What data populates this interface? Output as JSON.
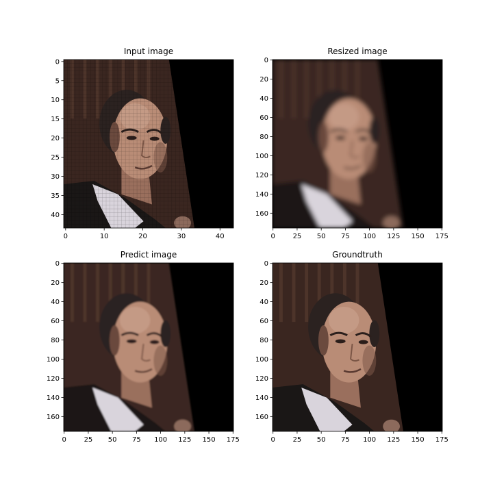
{
  "figure": {
    "panels": [
      {
        "title": "Input image",
        "image_kind": "pixelated",
        "x_ticks": [
          "0",
          "10",
          "20",
          "30",
          "40"
        ],
        "y_ticks": [
          "0",
          "5",
          "10",
          "15",
          "20",
          "25",
          "30",
          "35",
          "40"
        ],
        "x_tick_values": [
          0,
          10,
          20,
          30,
          40
        ],
        "y_tick_values": [
          0,
          5,
          10,
          15,
          20,
          25,
          30,
          35,
          40
        ],
        "range": [
          -0.5,
          43.5
        ]
      },
      {
        "title": "Resized image",
        "image_kind": "blurred",
        "x_ticks": [
          "0",
          "25",
          "50",
          "75",
          "100",
          "125",
          "150",
          "175"
        ],
        "y_ticks": [
          "0",
          "20",
          "40",
          "60",
          "80",
          "100",
          "120",
          "140",
          "160"
        ],
        "x_tick_values": [
          0,
          25,
          50,
          75,
          100,
          125,
          150,
          175
        ],
        "y_tick_values": [
          0,
          20,
          40,
          60,
          80,
          100,
          120,
          140,
          160
        ],
        "range": [
          -0.5,
          175.5
        ]
      },
      {
        "title": "Predict image",
        "image_kind": "restored",
        "x_ticks": [
          "0",
          "25",
          "50",
          "75",
          "100",
          "125",
          "150",
          "175"
        ],
        "y_ticks": [
          "0",
          "20",
          "40",
          "60",
          "80",
          "100",
          "120",
          "140",
          "160"
        ],
        "x_tick_values": [
          0,
          25,
          50,
          75,
          100,
          125,
          150,
          175
        ],
        "y_tick_values": [
          0,
          20,
          40,
          60,
          80,
          100,
          120,
          140,
          160
        ],
        "range": [
          -0.5,
          175.5
        ]
      },
      {
        "title": "Groundtruth",
        "image_kind": "sharp",
        "x_ticks": [
          "0",
          "25",
          "50",
          "75",
          "100",
          "125",
          "150",
          "175"
        ],
        "y_ticks": [
          "0",
          "20",
          "40",
          "60",
          "80",
          "100",
          "120",
          "140",
          "160"
        ],
        "x_tick_values": [
          0,
          25,
          50,
          75,
          100,
          125,
          150,
          175
        ],
        "y_tick_values": [
          0,
          20,
          40,
          60,
          80,
          100,
          120,
          140,
          160
        ],
        "range": [
          -0.5,
          175.5
        ]
      }
    ],
    "colors": {
      "background": "#000000",
      "wall": "#3a2620",
      "skin": "#b98c76",
      "hair": "#2b2220",
      "suit": "#1a1716",
      "shirt": "#d9d4dc"
    }
  }
}
